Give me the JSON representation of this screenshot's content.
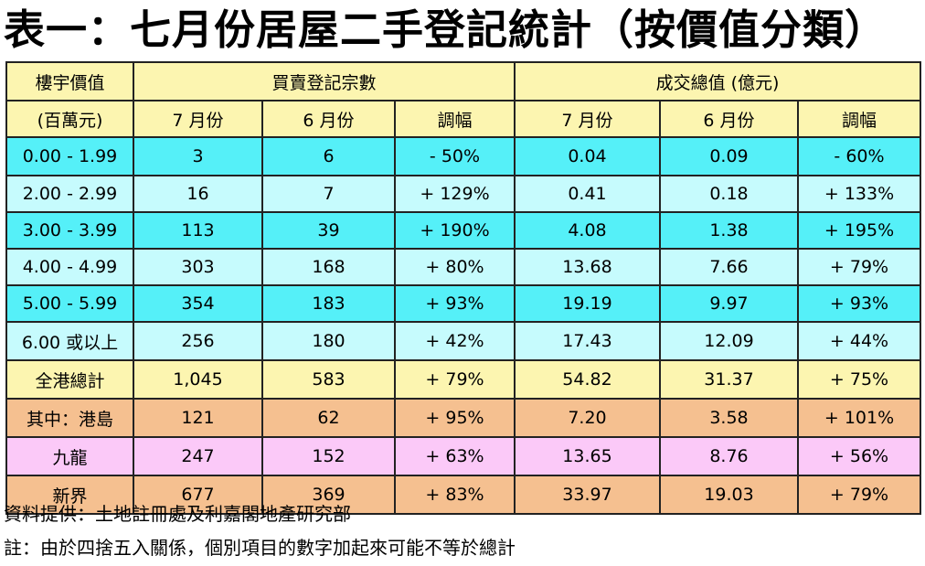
{
  "title": "表一：七月份居屋二手登記統計（按價值分類）",
  "table": {
    "header_row1": {
      "label": "樓宇價值",
      "group1": "買賣登記宗數",
      "group2": "成交總值 (億元)"
    },
    "header_row2": {
      "label": "(百萬元)",
      "cols": [
        "7 月份",
        "6 月份",
        "調幅",
        "7 月份",
        "6 月份",
        "調幅"
      ]
    },
    "rows": [
      {
        "label": "0.00 - 1.99",
        "cells": [
          "3",
          "6",
          "- 50%",
          "0.04",
          "0.09",
          "- 60%"
        ]
      },
      {
        "label": "2.00 - 2.99",
        "cells": [
          "16",
          "7",
          "+ 129%",
          "0.41",
          "0.18",
          "+ 133%"
        ]
      },
      {
        "label": "3.00 - 3.99",
        "cells": [
          "113",
          "39",
          "+ 190%",
          "4.08",
          "1.38",
          "+ 195%"
        ]
      },
      {
        "label": "4.00 - 4.99",
        "cells": [
          "303",
          "168",
          "+ 80%",
          "13.68",
          "7.66",
          "+ 79%"
        ]
      },
      {
        "label": "5.00 - 5.99",
        "cells": [
          "354",
          "183",
          "+ 93%",
          "19.19",
          "9.97",
          "+ 93%"
        ]
      },
      {
        "label": "6.00 或以上",
        "cells": [
          "256",
          "180",
          "+ 42%",
          "17.43",
          "12.09",
          "+ 44%"
        ]
      },
      {
        "label": "全港總計",
        "cells": [
          "1,045",
          "583",
          "+ 79%",
          "54.82",
          "31.37",
          "+ 75%"
        ]
      },
      {
        "label": "其中：港島",
        "cells": [
          "121",
          "62",
          "+ 95%",
          "7.20",
          "3.58",
          "+ 101%"
        ]
      },
      {
        "label": "九龍",
        "cells": [
          "247",
          "152",
          "+ 63%",
          "13.65",
          "8.76",
          "+ 56%"
        ]
      },
      {
        "label": "新界",
        "cells": [
          "677",
          "369",
          "+ 83%",
          "33.97",
          "19.03",
          "+ 79%"
        ]
      }
    ]
  },
  "source_note": "資料提供：土地註冊處及利嘉閣地產研究部",
  "footnote": "註：由於四捨五入關係，個別項目的數字加起來可能不等於總計",
  "colors": {
    "header": "#fcf5b0",
    "row_cyan": "#55f0f8",
    "row_light_cyan": "#c6fbfd",
    "row_total": "#fcf5b0",
    "row_hk_island": "#f5c090",
    "row_kowloon": "#fbc9f8",
    "row_nt": "#f5c090"
  }
}
